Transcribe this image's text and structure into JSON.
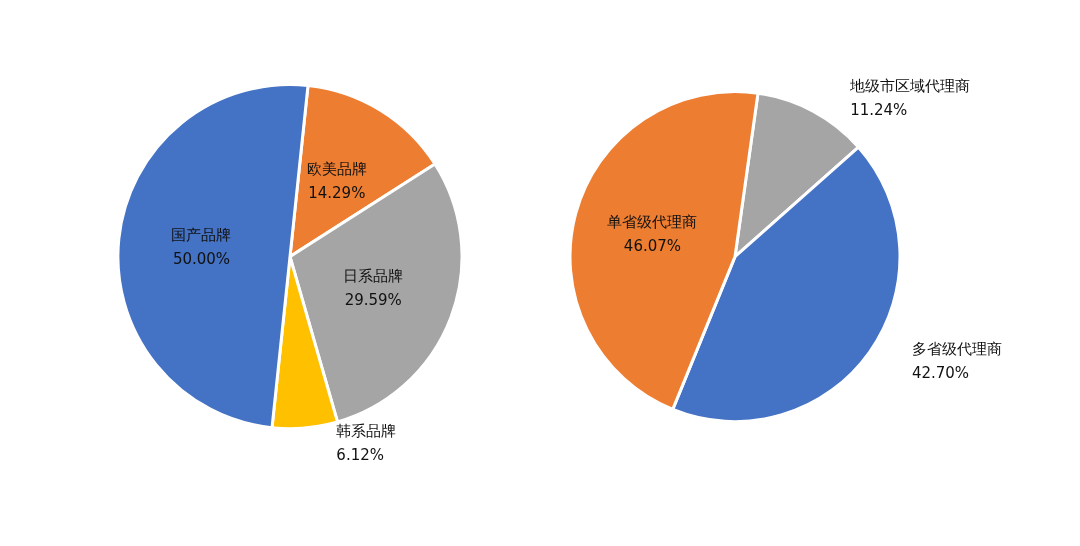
{
  "chart_data": [
    {
      "type": "pie",
      "categories": [
        "欧美品牌",
        "日系品牌",
        "韩系品牌",
        "国产品牌"
      ],
      "values": [
        14.29,
        29.59,
        6.12,
        50.0
      ],
      "value_labels": [
        "14.29%",
        "29.59%",
        "6.12%",
        "50.00%"
      ],
      "colors": [
        "#ed7d31",
        "#a5a5a5",
        "#ffc000",
        "#4472c4"
      ]
    },
    {
      "type": "pie",
      "categories": [
        "地级市区域代理商",
        "多省级代理商",
        "单省级代理商"
      ],
      "values": [
        11.24,
        42.7,
        46.07
      ],
      "value_labels": [
        "11.24%",
        "42.70%",
        "46.07%"
      ],
      "colors": [
        "#a5a5a5",
        "#4472c4",
        "#ed7d31"
      ]
    }
  ]
}
